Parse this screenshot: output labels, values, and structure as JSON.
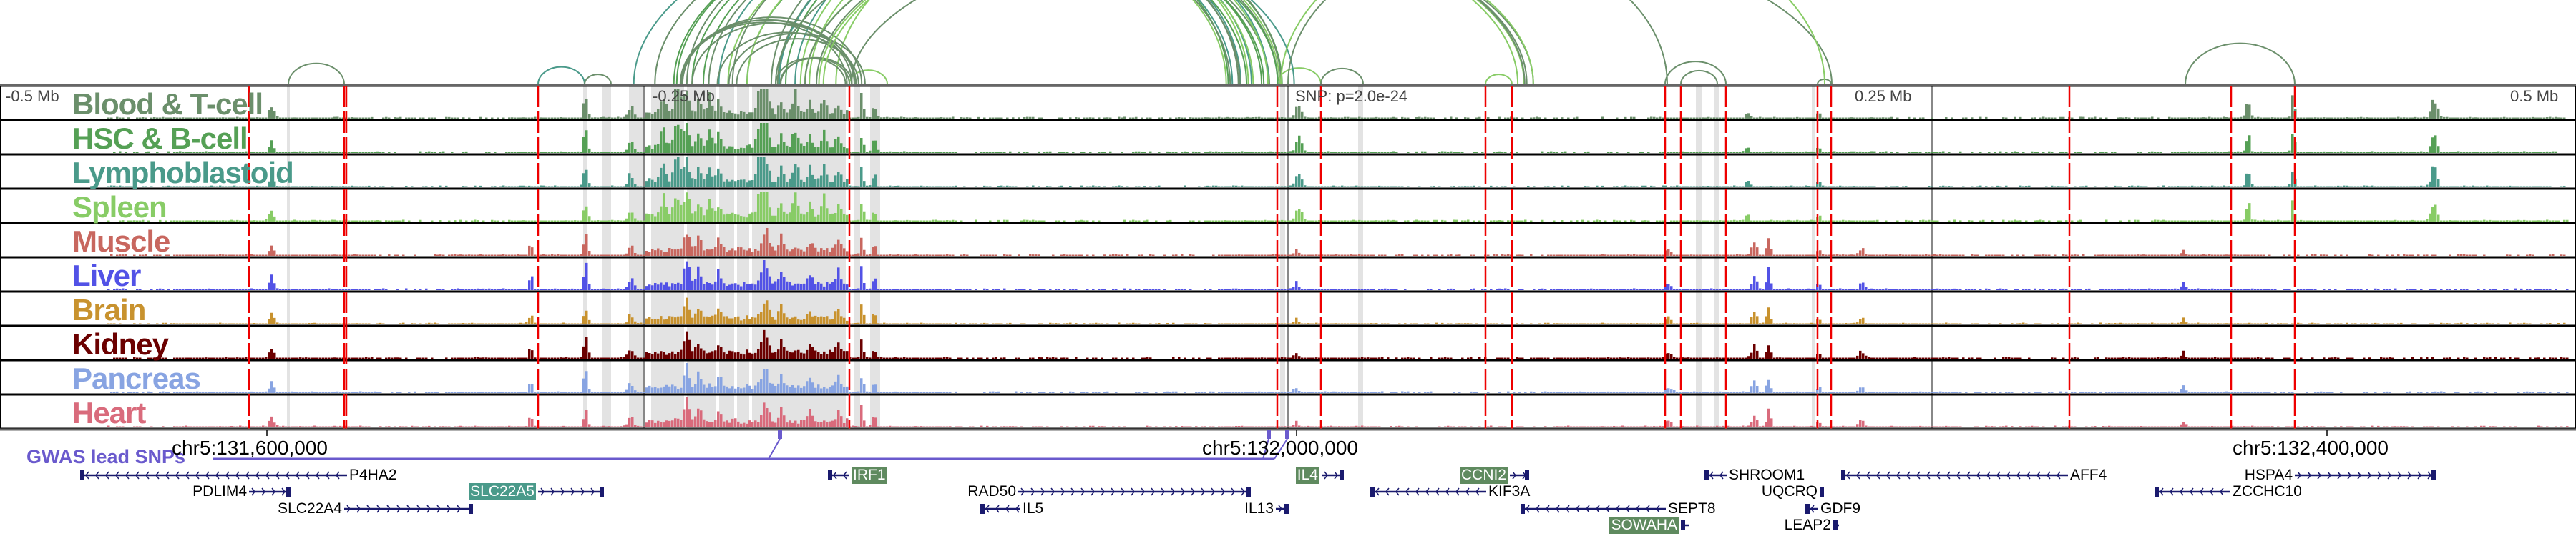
{
  "axis": {
    "labels": [
      "-0.5 Mb",
      "-0.25 Mb",
      "SNP: p=2.0e-24",
      "0.25 Mb",
      "0.5 Mb"
    ]
  },
  "tracks": [
    {
      "label": "Blood & T-cell",
      "color": "#6b8f6b"
    },
    {
      "label": "HSC & B-cell",
      "color": "#55a055"
    },
    {
      "label": "Lymphoblastoid",
      "color": "#4a9a8a"
    },
    {
      "label": "Spleen",
      "color": "#88cc66"
    },
    {
      "label": "Muscle",
      "color": "#c8675f"
    },
    {
      "label": "Liver",
      "color": "#5252e6"
    },
    {
      "label": "Brain",
      "color": "#c8922e"
    },
    {
      "label": "Kidney",
      "color": "#6b0000"
    },
    {
      "label": "Pancreas",
      "color": "#88a4e2"
    },
    {
      "label": "Heart",
      "color": "#d96b7c"
    }
  ],
  "gwas": {
    "label": "GWAS lead SNPs",
    "color": "#6a5acd"
  },
  "coordinates": [
    "chr5:131,600,000",
    "chr5:132,000,000",
    "chr5:132,400,000"
  ],
  "genes": [
    {
      "name": "P4HA2"
    },
    {
      "name": "PDLIM4"
    },
    {
      "name": "SLC22A5",
      "highlight": "#4a9a8a"
    },
    {
      "name": "SLC22A4"
    },
    {
      "name": "IRF1",
      "highlight": "#5f8a5f"
    },
    {
      "name": "IL4",
      "highlight": "#5f8a5f"
    },
    {
      "name": "CCNI2",
      "highlight": "#5f8a5f"
    },
    {
      "name": "SHROOM1"
    },
    {
      "name": "AFF4"
    },
    {
      "name": "HSPA4"
    },
    {
      "name": "RAD50"
    },
    {
      "name": "KIF3A"
    },
    {
      "name": "UQCRQ"
    },
    {
      "name": "ZCCHC10"
    },
    {
      "name": "IL5"
    },
    {
      "name": "IL13"
    },
    {
      "name": "SEPT8"
    },
    {
      "name": "GDF9"
    },
    {
      "name": "SOWAHA",
      "highlight": "#5f8a5f"
    },
    {
      "name": "LEAP2"
    }
  ]
}
